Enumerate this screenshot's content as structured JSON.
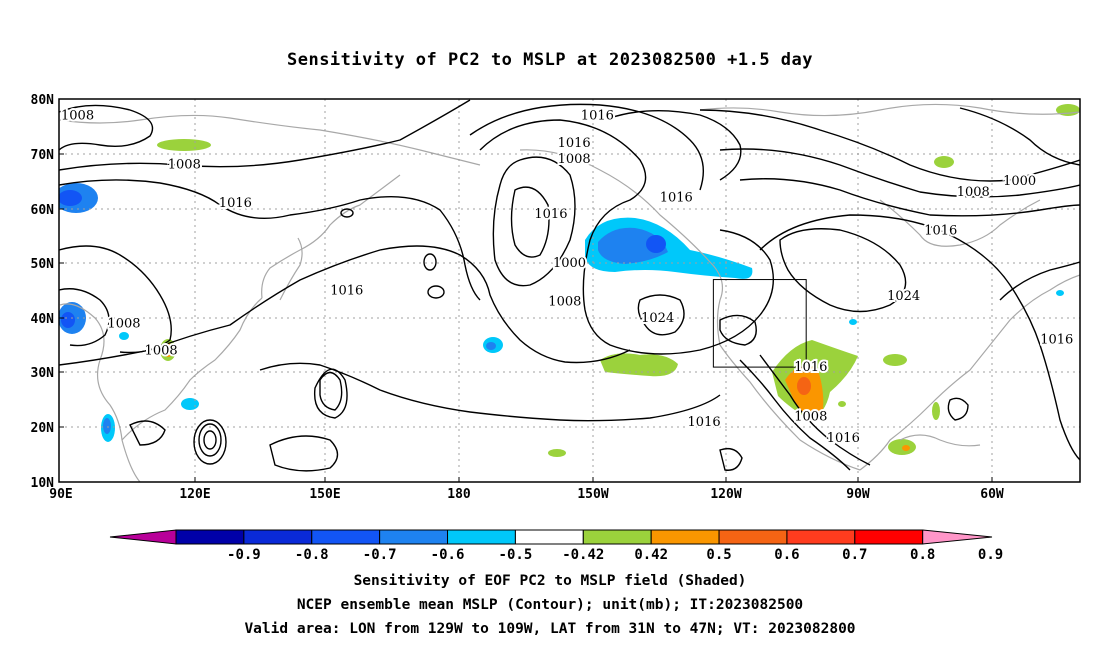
{
  "title": "Sensitivity of PC2 to MSLP at 2023082500 +1.5 day",
  "lat_labels": [
    "80N",
    "70N",
    "60N",
    "50N",
    "40N",
    "30N",
    "20N",
    "10N"
  ],
  "lon_labels": [
    "90E",
    "120E",
    "150E",
    "180",
    "150W",
    "120W",
    "90W",
    "60W"
  ],
  "contour_labels": [
    {
      "text": "1008",
      "lon": 94,
      "lat": 77
    },
    {
      "text": "1008",
      "lon": 117,
      "lat": 68
    },
    {
      "text": "1016",
      "lon": 128,
      "lat": 61
    },
    {
      "text": "1008",
      "lon": 104,
      "lat": 39
    },
    {
      "text": "1008",
      "lon": 112,
      "lat": 34
    },
    {
      "text": "1016",
      "lon": 152,
      "lat": 45
    },
    {
      "text": "1016",
      "lon": -164,
      "lat": 59
    },
    {
      "text": "1016",
      "lon": -154,
      "lat": 77
    },
    {
      "text": "1016",
      "lon": -159,
      "lat": 72
    },
    {
      "text": "1008",
      "lon": -159,
      "lat": 69
    },
    {
      "text": "1000",
      "lon": -160,
      "lat": 50
    },
    {
      "text": "1008",
      "lon": -161,
      "lat": 43
    },
    {
      "text": "1016",
      "lon": -137,
      "lat": 62
    },
    {
      "text": "1024",
      "lon": -141,
      "lat": 40
    },
    {
      "text": "1016",
      "lon": -131,
      "lat": 21
    },
    {
      "text": "1016",
      "lon": -108,
      "lat": 31
    },
    {
      "text": "1008",
      "lon": -108,
      "lat": 22
    },
    {
      "text": "1016",
      "lon": -101,
      "lat": 18
    },
    {
      "text": "1024",
      "lon": -88,
      "lat": 44
    },
    {
      "text": "1016",
      "lon": -80,
      "lat": 56
    },
    {
      "text": "1008",
      "lon": -73,
      "lat": 63
    },
    {
      "text": "1000",
      "lon": -63,
      "lat": 65
    },
    {
      "text": "1016",
      "lon": -55,
      "lat": 36
    }
  ],
  "colorbar": {
    "tick_labels": [
      "-0.9",
      "-0.8",
      "-0.7",
      "-0.6",
      "-0.5",
      "-0.42",
      "0.42",
      "0.5",
      "0.6",
      "0.7",
      "0.8",
      "0.9"
    ],
    "colors": [
      "#b80099",
      "#0000a8",
      "#0a2ad8",
      "#1255f5",
      "#1e82f0",
      "#00c8fa",
      "#ffffff",
      "#9bd23c",
      "#fa9600",
      "#f56414",
      "#ff3c1e",
      "#ff0000",
      "#ff96c8"
    ]
  },
  "valid_box": {
    "lon_min": -129,
    "lon_max": -109,
    "lat_min": 31,
    "lat_max": 47
  },
  "captions": [
    "Sensitivity of EOF PC2 to MSLP field (Shaded)",
    "NCEP ensemble mean MSLP (Contour); unit(mb); IT:2023082500",
    "Valid area: LON from 129W to 109W, LAT from 31N to 47N; VT: 2023082800"
  ]
}
